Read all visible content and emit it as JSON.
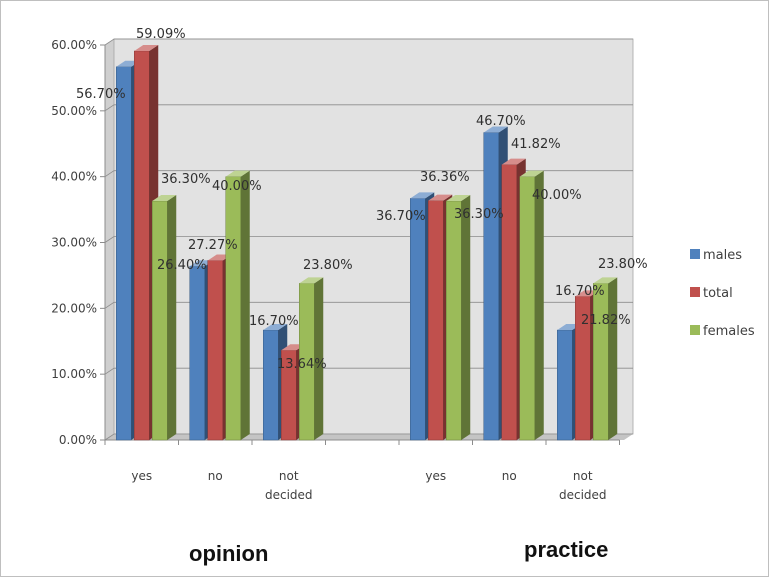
{
  "chart_data": {
    "type": "bar",
    "style": "3d-clustered-column",
    "categories": [
      "yes",
      "no",
      "not decided",
      "",
      "yes",
      "no",
      "not decided"
    ],
    "groups": [
      "opinion",
      "practice"
    ],
    "series": [
      {
        "name": "males",
        "color": "#4f81bd",
        "values": [
          56.7,
          26.4,
          16.7,
          null,
          36.7,
          46.7,
          16.7
        ],
        "labels": [
          "56.70%",
          "26.40%",
          "16.70%",
          "",
          "36.70%",
          "46.70%",
          "16.70%"
        ]
      },
      {
        "name": "total",
        "color": "#c0504d",
        "values": [
          59.09,
          27.27,
          13.64,
          null,
          36.36,
          41.82,
          21.82
        ],
        "labels": [
          "59.09%",
          "27.27%",
          "13.64%",
          "",
          "36.36%",
          "41.82%",
          "21.82%"
        ]
      },
      {
        "name": "females",
        "color": "#9bbb59",
        "values": [
          36.3,
          40.0,
          23.8,
          null,
          36.3,
          40.0,
          23.8
        ],
        "labels": [
          "36.30%",
          "40.00%",
          "23.80%",
          "",
          "36.30%",
          "40.00%",
          "23.80%"
        ]
      }
    ],
    "yticks": [
      "0.00%",
      "10.00%",
      "20.00%",
      "30.00%",
      "40.00%",
      "50.00%",
      "60.00%"
    ],
    "ylim": [
      0,
      60
    ],
    "grid": true,
    "legend": "right"
  }
}
